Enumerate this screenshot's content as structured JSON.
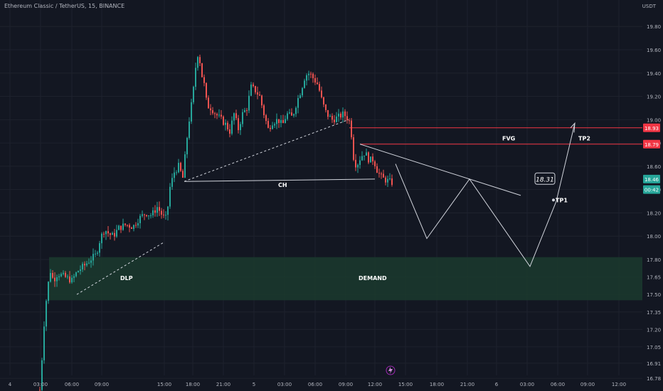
{
  "header": {
    "symbol": "Ethereum Classic / TetherUS, 15, BINANCE",
    "currency": "USDT"
  },
  "colors": {
    "background": "#131722",
    "grid": "#1e222d",
    "up": "#26a69a",
    "down": "#ef5350",
    "demand_fill": "#1b3a2e",
    "level_line": "#f23645",
    "drawing": "#d1d4dc",
    "text": "#b2b5be"
  },
  "chart_data": {
    "type": "candlestick",
    "y_axis": {
      "range": [
        16.72,
        19.96
      ],
      "ticks": [
        19.8,
        19.6,
        19.4,
        19.2,
        19.0,
        18.8,
        18.6,
        18.4,
        18.2,
        18.0,
        17.8,
        17.65,
        17.5,
        17.35,
        17.2,
        17.05,
        16.91,
        16.78
      ]
    },
    "x_axis": {
      "ticks": [
        "4",
        "03:00",
        "06:00",
        "09:00",
        "15:00",
        "18:00",
        "21:00",
        "5",
        "03:00",
        "06:00",
        "09:00",
        "12:00",
        "15:00",
        "18:00",
        "21:00",
        "6",
        "03:00",
        "06:00",
        "09:00",
        "12:00"
      ]
    },
    "price_labels": [
      {
        "value": "18.93",
        "kind": "level"
      },
      {
        "value": "18.79",
        "kind": "level"
      },
      {
        "value": "18.46",
        "kind": "current"
      },
      {
        "value": "00:42",
        "kind": "countdown"
      }
    ],
    "zones": [
      {
        "label": "DEMAND",
        "from": 17.45,
        "to": 17.82
      }
    ],
    "levels": [
      {
        "label": "FVG",
        "from": 18.79,
        "to": 18.93
      }
    ],
    "annotations": [
      "DLP",
      "CH",
      "FVG",
      "TP2",
      "TP1",
      "DEMAND"
    ],
    "projection_label": "18.31",
    "alert_icon": "lightning-icon"
  }
}
